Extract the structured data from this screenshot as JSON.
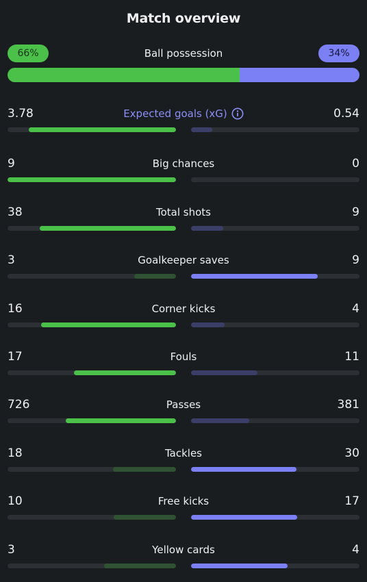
{
  "title": "Match overview",
  "possession": {
    "label": "Ball possession",
    "home": "66%",
    "away": "34%",
    "home_fraction": 0.66
  },
  "stats": [
    {
      "label": "Expected goals (xG)",
      "home": "3.78",
      "away": "0.54",
      "info": true
    },
    {
      "label": "Big chances",
      "home": "9",
      "away": "0"
    },
    {
      "label": "Total shots",
      "home": "38",
      "away": "9"
    },
    {
      "label": "Goalkeeper saves",
      "home": "3",
      "away": "9"
    },
    {
      "label": "Corner kicks",
      "home": "16",
      "away": "4"
    },
    {
      "label": "Fouls",
      "home": "17",
      "away": "11"
    },
    {
      "label": "Passes",
      "home": "726",
      "away": "381"
    },
    {
      "label": "Tackles",
      "home": "18",
      "away": "30"
    },
    {
      "label": "Free kicks",
      "home": "10",
      "away": "17"
    },
    {
      "label": "Yellow cards",
      "home": "3",
      "away": "4"
    }
  ],
  "colors": {
    "home": "#4cc14a",
    "away": "#7b80f5",
    "home_dim": "#2f5233",
    "away_dim": "#3b3f68",
    "background": "#1a1d20"
  }
}
